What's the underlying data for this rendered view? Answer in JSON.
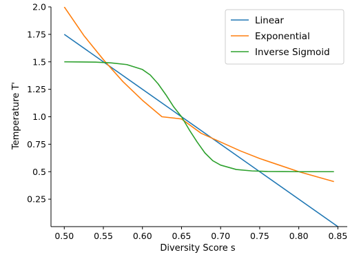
{
  "chart_data": {
    "type": "line",
    "title": "",
    "xlabel": "Diversity Score s",
    "ylabel": "Temperature T'",
    "xlim": [
      0.483,
      0.862
    ],
    "ylim": [
      0.0,
      2.0
    ],
    "x_ticks": [
      0.5,
      0.55,
      0.6,
      0.65,
      0.7,
      0.75,
      0.8,
      0.85
    ],
    "x_tick_labels": [
      "0.50",
      "0.55",
      "0.60",
      "0.65",
      "0.70",
      "0.75",
      "0.80",
      "0.85"
    ],
    "y_ticks": [
      0.25,
      0.5,
      0.75,
      1.0,
      1.25,
      1.5,
      1.75,
      2.0
    ],
    "y_tick_labels": [
      "0.25",
      "0.5",
      "0.75",
      "1.0",
      "1.25",
      "1.5",
      "1.75",
      "2.0"
    ],
    "grid": false,
    "legend_position": "top-right",
    "series": [
      {
        "name": "Linear",
        "color": "#1f77b4",
        "x": [
          0.5,
          0.85
        ],
        "y": [
          1.75,
          0.0
        ]
      },
      {
        "name": "Exponential",
        "color": "#ff7f0e",
        "x": [
          0.5,
          0.525,
          0.55,
          0.575,
          0.6,
          0.625,
          0.65,
          0.675,
          0.7,
          0.725,
          0.75,
          0.775,
          0.8,
          0.825,
          0.845
        ],
        "y": [
          2.0,
          1.74,
          1.52,
          1.32,
          1.15,
          1.0,
          0.98,
          0.85,
          0.77,
          0.69,
          0.62,
          0.56,
          0.5,
          0.45,
          0.41
        ]
      },
      {
        "name": "Inverse Sigmoid",
        "color": "#2ca02c",
        "x": [
          0.5,
          0.52,
          0.54,
          0.56,
          0.58,
          0.6,
          0.61,
          0.62,
          0.63,
          0.64,
          0.65,
          0.66,
          0.67,
          0.68,
          0.69,
          0.7,
          0.72,
          0.74,
          0.76,
          0.78,
          0.8,
          0.82,
          0.845
        ],
        "y": [
          1.5,
          1.499,
          1.497,
          1.49,
          1.475,
          1.43,
          1.38,
          1.3,
          1.2,
          1.09,
          1.0,
          0.88,
          0.77,
          0.67,
          0.6,
          0.56,
          0.52,
          0.507,
          0.502,
          0.501,
          0.5,
          0.5,
          0.5
        ]
      }
    ]
  }
}
